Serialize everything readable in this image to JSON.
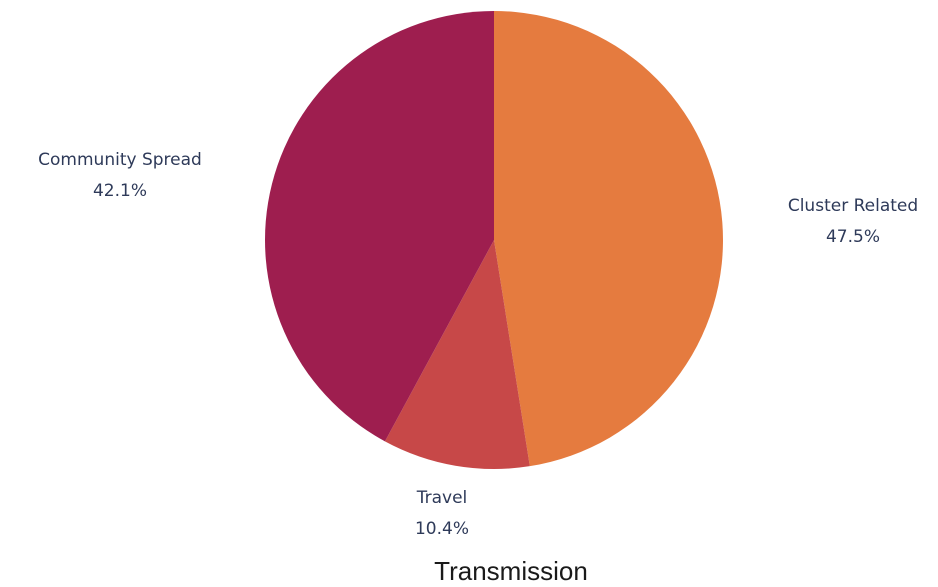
{
  "chart_data": {
    "type": "pie",
    "title": "Transmission",
    "start_angle_deg": 0,
    "direction": "clockwise",
    "slices": [
      {
        "label": "Cluster Related",
        "value": 47.5,
        "display": "47.5%",
        "color": "#e57b3f"
      },
      {
        "label": "Travel",
        "value": 10.4,
        "display": "10.4%",
        "color": "#c74848"
      },
      {
        "label": "Community Spread",
        "value": 42.1,
        "display": "42.1%",
        "color": "#9e1e4f"
      }
    ]
  }
}
